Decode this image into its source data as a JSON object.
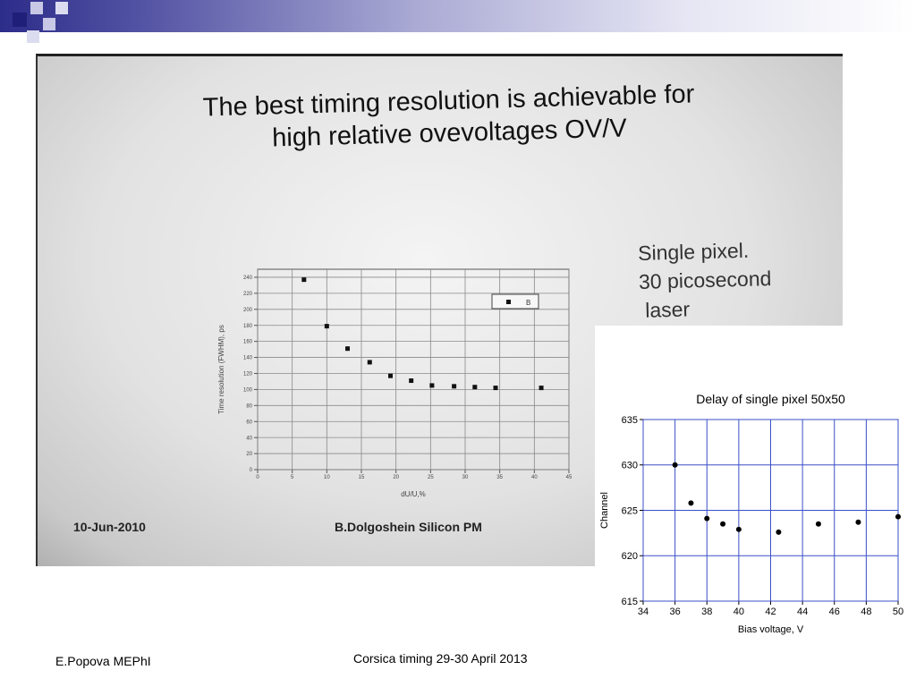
{
  "photo": {
    "title_line1": "The best timing resolution is achievable for",
    "title_line2": "high relative ovevoltages OV/V",
    "side_text": "Single pixel.\n30 picosecond\n laser",
    "footer_left": "10-Jun-2010",
    "footer_right": "B.Dolgoshein Silicon PM"
  },
  "footer": {
    "author": "E.Popova MEPhI",
    "event": "Corsica timing 29-30 April 2013"
  },
  "colors": {
    "grid_blue": "#3b4fc8",
    "dark_navy": "#1f1f7a"
  },
  "chart_data": [
    {
      "type": "scatter",
      "title": "",
      "xlabel": "dU/U,%",
      "ylabel": "Time resolution (FWHM), ps",
      "xlim": [
        0,
        45
      ],
      "ylim": [
        0,
        250
      ],
      "xticks": [
        0,
        5,
        10,
        15,
        20,
        25,
        30,
        35,
        40,
        45
      ],
      "yticks": [
        0,
        20,
        40,
        60,
        80,
        100,
        120,
        140,
        160,
        180,
        200,
        220,
        240
      ],
      "grid": true,
      "legend": "top-right",
      "series": [
        {
          "name": "B",
          "x": [
            6.7,
            10,
            13,
            16.2,
            19.2,
            22.2,
            25.2,
            28.4,
            31.4,
            34.4,
            41
          ],
          "y": [
            237,
            179,
            151,
            134,
            117,
            111,
            105,
            104,
            103,
            102,
            102
          ]
        }
      ]
    },
    {
      "type": "scatter",
      "title": "Delay of single pixel  50x50",
      "xlabel": "Bias voltage, V",
      "ylabel": "Channel",
      "xlim": [
        34,
        50
      ],
      "ylim": [
        615,
        635
      ],
      "xticks": [
        34,
        36,
        38,
        40,
        42,
        44,
        46,
        48,
        50
      ],
      "yticks": [
        615,
        620,
        625,
        630,
        635
      ],
      "grid": true,
      "series": [
        {
          "x": [
            36,
            37,
            38,
            39,
            40,
            42.5,
            45,
            47.5,
            50
          ],
          "y": [
            630,
            625.8,
            624.1,
            623.5,
            622.9,
            622.6,
            623.5,
            623.7,
            624.3
          ]
        }
      ]
    }
  ]
}
